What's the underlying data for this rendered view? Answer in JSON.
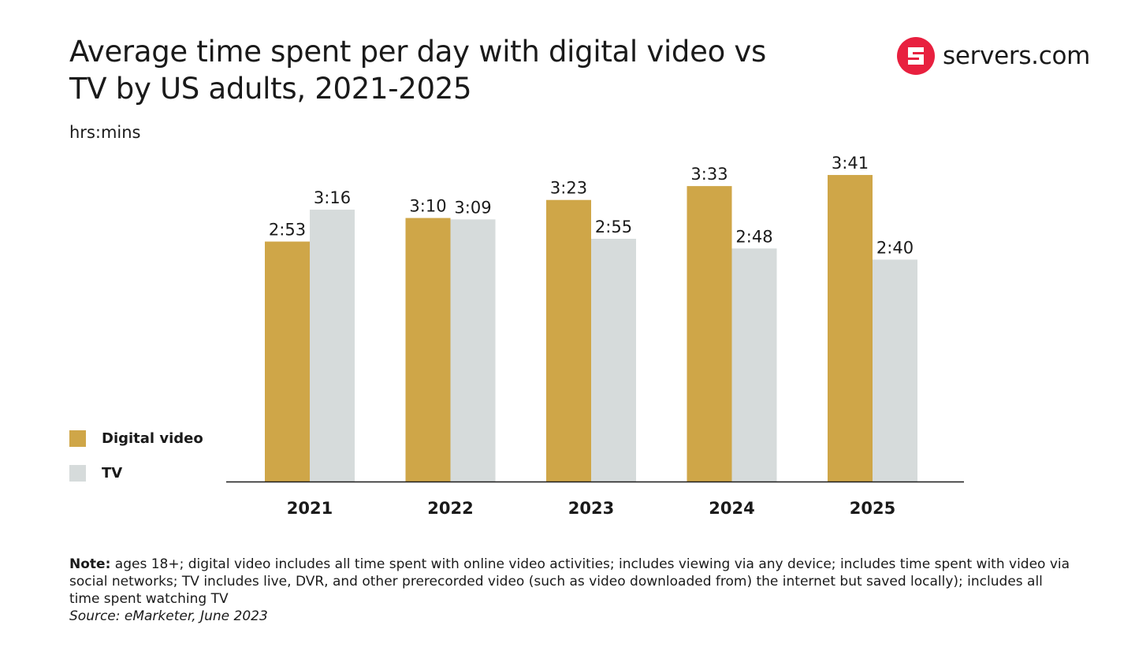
{
  "header": {
    "title": "Average time spent per day with digital video vs TV by US adults, 2021-2025",
    "unit_label": "hrs:mins"
  },
  "logo": {
    "text": "servers.com",
    "brand_color": "#e8203f"
  },
  "legend": {
    "items": [
      {
        "label": "Digital video",
        "color": "#cfa648"
      },
      {
        "label": "TV",
        "color": "#d6dbdb"
      }
    ]
  },
  "chart_data": {
    "type": "bar",
    "title": "Average time spent per day with digital video vs TV by US adults, 2021-2025",
    "ylabel": "hrs:mins",
    "xlabel": "",
    "categories": [
      "2021",
      "2022",
      "2023",
      "2024",
      "2025"
    ],
    "series": [
      {
        "name": "Digital video",
        "color": "#cfa648",
        "values_minutes": [
          173,
          190,
          203,
          213,
          221
        ],
        "labels": [
          "2:53",
          "3:10",
          "3:23",
          "3:33",
          "3:41"
        ]
      },
      {
        "name": "TV",
        "color": "#d6dbdb",
        "values_minutes": [
          196,
          189,
          175,
          168,
          160
        ],
        "labels": [
          "3:16",
          "3:09",
          "2:55",
          "2:48",
          "2:40"
        ]
      }
    ],
    "ylim": [
      0,
      221
    ],
    "grid": false,
    "legend_position": "left"
  },
  "footer": {
    "note_label": "Note:",
    "note_text": "ages 18+; digital video includes all time spent with online video activities; includes viewing via any device; includes time spent with video via social networks; TV includes live, DVR, and other prerecorded video (such as video downloaded from) the internet but saved locally); includes all time spent watching TV",
    "source": "Source: eMarketer, June 2023"
  }
}
